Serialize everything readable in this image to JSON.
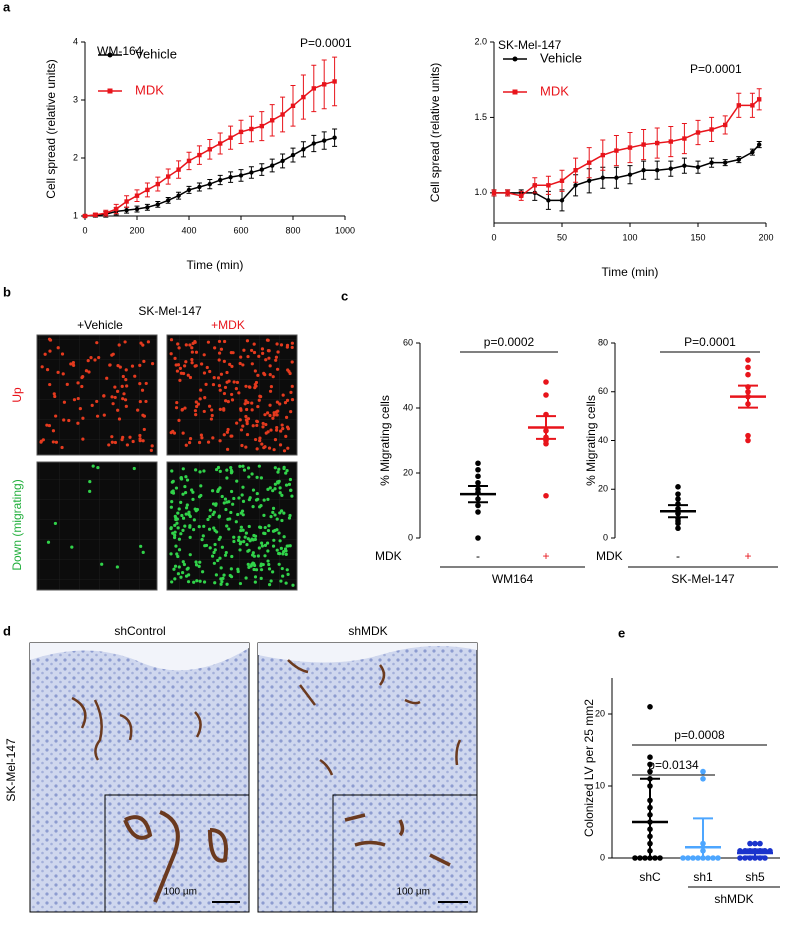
{
  "figure": {
    "panel_labels": [
      "a",
      "b",
      "c",
      "d",
      "e"
    ],
    "b": {
      "title": "SK-Mel-147",
      "columns": [
        "+Vehicle",
        "+MDK"
      ],
      "rows": [
        "Up",
        "Down (migrating)"
      ]
    },
    "d": {
      "columns": [
        "shControl",
        "shMDK"
      ],
      "row": "SK-Mel-147",
      "scale_bar": "100 µm"
    }
  },
  "chart_data": [
    {
      "type": "line",
      "title": "WM-164",
      "x_label": "Time (min)",
      "y_label": "Cell spread (relative units)",
      "annotation": "P=0.0001",
      "x": [
        0,
        40,
        80,
        120,
        160,
        200,
        240,
        280,
        320,
        360,
        400,
        440,
        480,
        520,
        560,
        600,
        640,
        680,
        720,
        760,
        800,
        840,
        880,
        920,
        960
      ],
      "xlim": [
        0,
        1000
      ],
      "xticks": [
        0,
        200,
        400,
        600,
        800,
        1000
      ],
      "ylim": [
        1,
        4
      ],
      "yticks": [
        1,
        2,
        3,
        4
      ],
      "series": [
        {
          "name": "Vehicle",
          "color": "#000000",
          "values": [
            1.0,
            1.01,
            1.03,
            1.08,
            1.1,
            1.12,
            1.15,
            1.2,
            1.27,
            1.35,
            1.45,
            1.5,
            1.55,
            1.62,
            1.67,
            1.7,
            1.75,
            1.8,
            1.87,
            1.95,
            2.05,
            2.15,
            2.25,
            2.3,
            2.35
          ],
          "errors": [
            0.02,
            0.03,
            0.05,
            0.06,
            0.05,
            0.05,
            0.05,
            0.05,
            0.05,
            0.06,
            0.06,
            0.07,
            0.08,
            0.08,
            0.09,
            0.1,
            0.1,
            0.1,
            0.11,
            0.12,
            0.12,
            0.13,
            0.14,
            0.15,
            0.15
          ]
        },
        {
          "name": "MDK",
          "color": "#e8141b",
          "values": [
            1.0,
            1.02,
            1.05,
            1.12,
            1.25,
            1.35,
            1.45,
            1.55,
            1.68,
            1.8,
            1.95,
            2.05,
            2.15,
            2.25,
            2.35,
            2.45,
            2.5,
            2.55,
            2.65,
            2.75,
            2.9,
            3.05,
            3.2,
            3.27,
            3.32
          ],
          "errors": [
            0.02,
            0.03,
            0.05,
            0.08,
            0.1,
            0.1,
            0.12,
            0.12,
            0.13,
            0.15,
            0.15,
            0.16,
            0.17,
            0.18,
            0.2,
            0.2,
            0.22,
            0.25,
            0.27,
            0.3,
            0.35,
            0.38,
            0.4,
            0.42,
            0.42
          ]
        }
      ]
    },
    {
      "type": "line",
      "title": "SK-Mel-147",
      "x_label": "Time (min)",
      "y_label": "Cell spread (relative units)",
      "annotation": "P=0.0001",
      "x": [
        0,
        10,
        20,
        30,
        40,
        50,
        60,
        70,
        80,
        90,
        100,
        110,
        120,
        130,
        140,
        150,
        160,
        170,
        180,
        190,
        195
      ],
      "xlim": [
        0,
        200
      ],
      "xticks": [
        0,
        50,
        100,
        150,
        200
      ],
      "ylim": [
        0.8,
        2.0
      ],
      "yticks": [
        {
          "value": 1,
          "label": "1.0"
        },
        {
          "value": 1.5,
          "label": "1.5"
        },
        {
          "value": 2,
          "label": "2.0"
        }
      ],
      "series": [
        {
          "name": "Vehicle",
          "color": "#000000",
          "values": [
            1.0,
            1.0,
            1.0,
            1.0,
            0.95,
            0.95,
            1.05,
            1.08,
            1.1,
            1.1,
            1.12,
            1.15,
            1.15,
            1.16,
            1.18,
            1.17,
            1.2,
            1.2,
            1.22,
            1.27,
            1.32
          ],
          "errors": [
            0.02,
            0.02,
            0.02,
            0.05,
            0.06,
            0.07,
            0.07,
            0.08,
            0.07,
            0.07,
            0.06,
            0.06,
            0.06,
            0.05,
            0.05,
            0.04,
            0.03,
            0.02,
            0.02,
            0.02,
            0.02
          ]
        },
        {
          "name": "MDK",
          "color": "#e8141b",
          "values": [
            1.0,
            1.0,
            0.98,
            1.05,
            1.05,
            1.08,
            1.15,
            1.2,
            1.25,
            1.28,
            1.3,
            1.32,
            1.33,
            1.34,
            1.36,
            1.4,
            1.42,
            1.45,
            1.58,
            1.58,
            1.62
          ],
          "errors": [
            0.02,
            0.02,
            0.03,
            0.05,
            0.06,
            0.07,
            0.08,
            0.1,
            0.1,
            0.1,
            0.1,
            0.1,
            0.1,
            0.1,
            0.1,
            0.08,
            0.08,
            0.06,
            0.08,
            0.08,
            0.07
          ]
        }
      ]
    },
    {
      "type": "dotplot",
      "y_label": "% Migrating cells",
      "row_label": "MDK",
      "group_label": "WM164",
      "annotations": [
        "p=0.0002"
      ],
      "categories": [
        "-",
        "+"
      ],
      "ylim": [
        0,
        60
      ],
      "yticks": [
        0,
        20,
        40,
        60
      ],
      "groups": [
        {
          "color": "#000000",
          "points": [
            0,
            8,
            10,
            12,
            14,
            15,
            17,
            19,
            21,
            23
          ],
          "mean": 13.5,
          "error": 2.5
        },
        {
          "color": "#e8141b",
          "points": [
            13,
            29,
            30,
            31,
            33,
            38,
            44,
            48
          ],
          "mean": 34,
          "error": 3.5
        }
      ]
    },
    {
      "type": "dotplot",
      "y_label": "% Migrating cells",
      "row_label": "MDK",
      "group_label": "SK-Mel-147",
      "annotations": [
        "P=0.0001"
      ],
      "categories": [
        "-",
        "+"
      ],
      "ylim": [
        0,
        80
      ],
      "yticks": [
        0,
        20,
        40,
        60,
        80
      ],
      "groups": [
        {
          "color": "#000000",
          "points": [
            4,
            6,
            7,
            8,
            10,
            12,
            14,
            16,
            18,
            21
          ],
          "mean": 11,
          "error": 2.5
        },
        {
          "color": "#e8141b",
          "points": [
            40,
            42,
            55,
            58,
            60,
            62,
            67,
            70,
            73
          ],
          "mean": 58,
          "error": 4.5
        }
      ]
    },
    {
      "type": "dotplot",
      "y_label": "Colonized  LV  per 25 mm2",
      "group_label": "shMDK",
      "annotations": [
        "p=0.0134",
        "p=0.0008"
      ],
      "categories": [
        "shC",
        "sh1",
        "sh5"
      ],
      "ylim": [
        0,
        25
      ],
      "yticks": [
        0,
        10,
        20
      ],
      "groups": [
        {
          "color": "#000000",
          "points": [
            0,
            0,
            0,
            0,
            0,
            0,
            1,
            2,
            3,
            4,
            5,
            6,
            7,
            8,
            10,
            11,
            12,
            13,
            14,
            21
          ],
          "mean": 5,
          "error": 6
        },
        {
          "color": "#4da6ff",
          "points": [
            0,
            0,
            0,
            0,
            0,
            0,
            0,
            0,
            1,
            2,
            11,
            12
          ],
          "mean": 1.5,
          "error": 4
        },
        {
          "color": "#1a33cc",
          "points": [
            0,
            0,
            0,
            0,
            0,
            0,
            1,
            1,
            1,
            1,
            1,
            1,
            1,
            2,
            2,
            2
          ],
          "mean": 0.7,
          "error": 0.5
        }
      ]
    }
  ]
}
